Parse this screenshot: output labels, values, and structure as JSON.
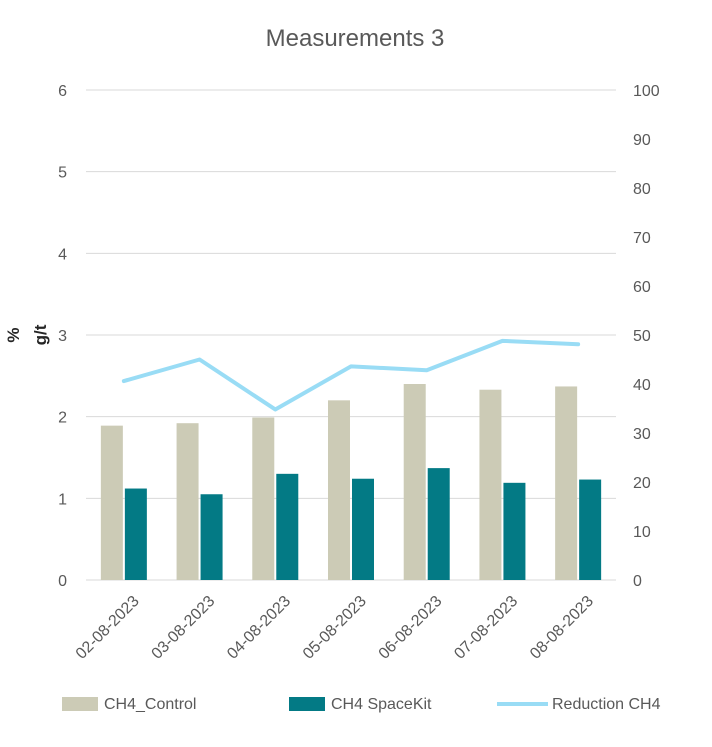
{
  "chart_data": {
    "type": "bar",
    "title": "Measurements 3",
    "ylabel": "% g/t",
    "ylabel_lines": [
      "%",
      "g/t"
    ],
    "categories": [
      "02-08-2023",
      "03-08-2023",
      "04-08-2023",
      "05-08-2023",
      "06-08-2023",
      "07-08-2023",
      "08-08-2023"
    ],
    "y_left": {
      "min": 0,
      "max": 6,
      "ticks": [
        "0",
        "1",
        "2",
        "3",
        "4",
        "5",
        "6"
      ]
    },
    "y_right": {
      "min": 0,
      "max": 100,
      "ticks": [
        "0",
        "10",
        "20",
        "30",
        "40",
        "50",
        "60",
        "70",
        "80",
        "90",
        "100"
      ]
    },
    "grid": true,
    "legend_position": "bottom",
    "series": [
      {
        "name": "CH4_Control",
        "type": "bar",
        "axis": "left",
        "color": "#cccbb6",
        "values": [
          1.89,
          1.92,
          1.99,
          2.2,
          2.4,
          2.33,
          2.37
        ]
      },
      {
        "name": "CH4 SpaceKit",
        "type": "bar",
        "axis": "left",
        "color": "#037a85",
        "values": [
          1.12,
          1.05,
          1.3,
          1.24,
          1.37,
          1.19,
          1.23
        ]
      },
      {
        "name": "Reduction CH4",
        "type": "line",
        "axis": "right",
        "color": "#99dcf5",
        "values": [
          40.6,
          45.0,
          34.8,
          43.6,
          42.8,
          48.8,
          48.1
        ]
      }
    ]
  }
}
